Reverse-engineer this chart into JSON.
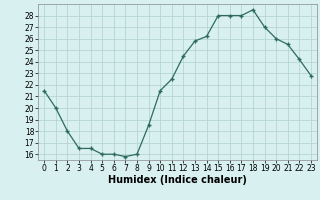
{
  "x": [
    0,
    1,
    2,
    3,
    4,
    5,
    6,
    7,
    8,
    9,
    10,
    11,
    12,
    13,
    14,
    15,
    16,
    17,
    18,
    19,
    20,
    21,
    22,
    23
  ],
  "y": [
    21.5,
    20.0,
    18.0,
    16.5,
    16.5,
    16.0,
    16.0,
    15.8,
    16.0,
    18.5,
    21.5,
    22.5,
    24.5,
    25.8,
    26.2,
    28.0,
    28.0,
    28.0,
    28.5,
    27.0,
    26.0,
    25.5,
    24.2,
    22.8
  ],
  "xlabel": "Humidex (Indice chaleur)",
  "line_color": "#2d6b5e",
  "marker": "+",
  "marker_size": 3,
  "bg_color": "#d9f0f0",
  "grid_color": "#b0d0d0",
  "ylim": [
    15.5,
    29.0
  ],
  "xlim": [
    -0.5,
    23.5
  ],
  "yticks": [
    16,
    17,
    18,
    19,
    20,
    21,
    22,
    23,
    24,
    25,
    26,
    27,
    28
  ],
  "xticks": [
    0,
    1,
    2,
    3,
    4,
    5,
    6,
    7,
    8,
    9,
    10,
    11,
    12,
    13,
    14,
    15,
    16,
    17,
    18,
    19,
    20,
    21,
    22,
    23
  ],
  "tick_fontsize": 5.5,
  "xlabel_fontsize": 7
}
